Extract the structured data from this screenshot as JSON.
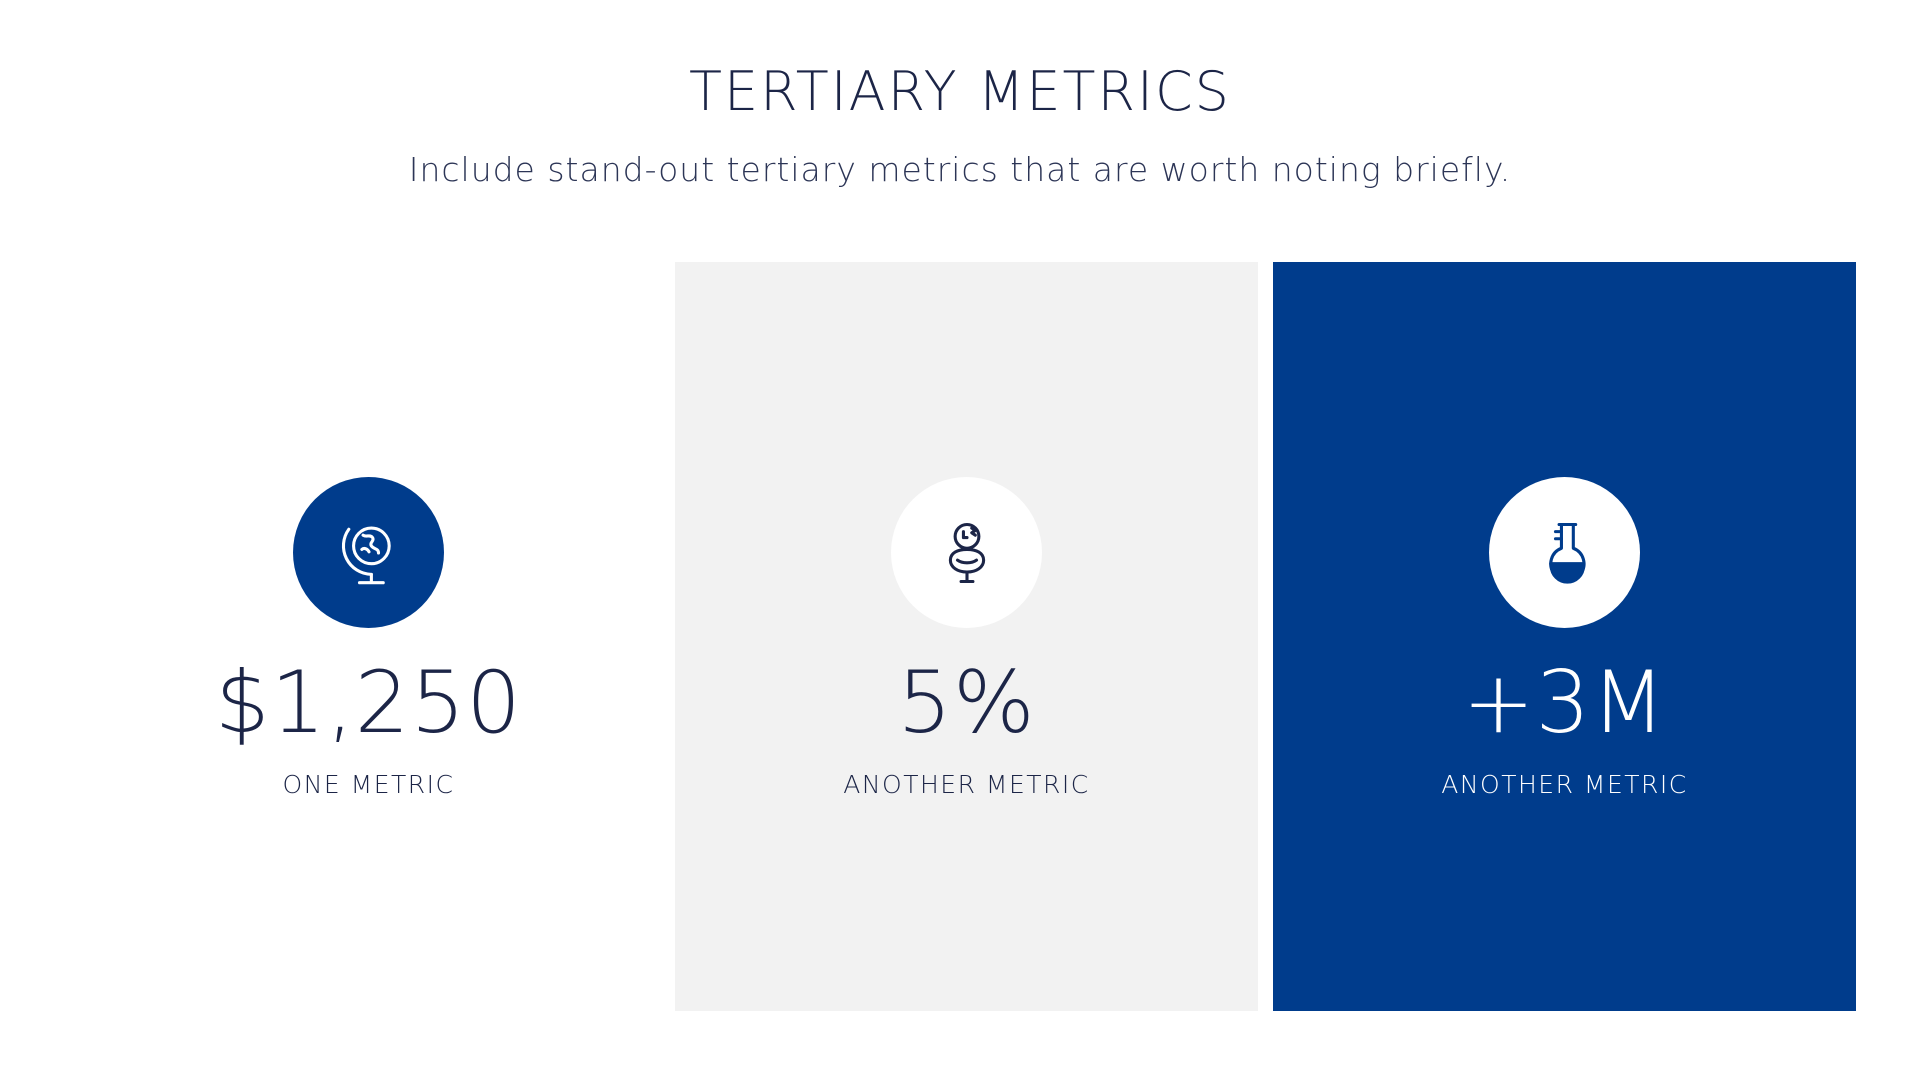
{
  "header": {
    "title": "TERTIARY METRICS",
    "subtitle": "Include stand-out tertiary metrics that are worth noting briefly."
  },
  "metrics": [
    {
      "icon": "globe-icon",
      "value": "$1,250",
      "label": "ONE METRIC"
    },
    {
      "icon": "chick-icon",
      "value": "5%",
      "label": "ANOTHER METRIC"
    },
    {
      "icon": "flask-icon",
      "value": "+3M",
      "label": "ANOTHER METRIC"
    }
  ],
  "colors": {
    "brand_blue": "#003c8c",
    "text_navy": "#1c2547",
    "panel_gray": "#f2f2f2",
    "white": "#ffffff"
  }
}
